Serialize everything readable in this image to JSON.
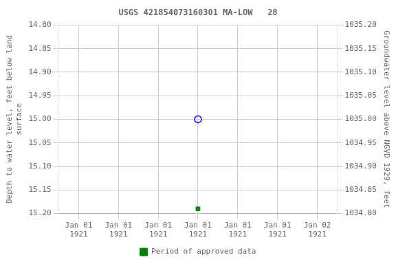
{
  "chart_data": {
    "type": "scatter",
    "title": "USGS 421854073160301 MA-LOW   28",
    "ylabel": "Depth to water level, feet below land\nsurface",
    "y2label": "Groundwater level above NGVD 1929, feet",
    "categories": [
      "Jan 01\n1921",
      "Jan 01\n1921",
      "Jan 01\n1921",
      "Jan 01\n1921",
      "Jan 01\n1921",
      "Jan 01\n1921",
      "Jan 02\n1921"
    ],
    "series": [
      {
        "color": "blue",
        "marker": "circle",
        "values": [
          null,
          null,
          null,
          15,
          null,
          null,
          null
        ]
      },
      {
        "name": "Period of approved data",
        "color": "green",
        "marker": "square",
        "values": [
          null,
          null,
          null,
          15.19,
          null,
          null,
          null
        ]
      }
    ],
    "ylim": [
      15.2,
      14.8
    ],
    "yticks": [
      {
        "value": 14.8,
        "label": "14.80"
      },
      {
        "value": 14.85,
        "label": "14.85"
      },
      {
        "value": 14.9,
        "label": "14.90"
      },
      {
        "value": 14.95,
        "label": "14.95"
      },
      {
        "value": 15,
        "label": "15.00"
      },
      {
        "value": 15.05,
        "label": "15.05"
      },
      {
        "value": 15.1,
        "label": "15.10"
      },
      {
        "value": 15.15,
        "label": "15.15"
      },
      {
        "value": 15.2,
        "label": "15.20"
      }
    ],
    "y2lim": [
      1034.8,
      1035.2
    ],
    "y2ticks": [
      {
        "value": 1035.2,
        "label": "1035.20"
      },
      {
        "value": 1035.15,
        "label": "1035.15"
      },
      {
        "value": 1035.1,
        "label": "1035.10"
      },
      {
        "value": 1035.05,
        "label": "1035.05"
      },
      {
        "value": 1035,
        "label": "1035.00"
      },
      {
        "value": 1034.95,
        "label": "1034.95"
      },
      {
        "value": 1034.9,
        "label": "1034.90"
      },
      {
        "value": 1034.85,
        "label": "1034.85"
      },
      {
        "value": 1034.8,
        "label": "1034.80"
      }
    ],
    "grid": true,
    "legend": "bottom"
  }
}
